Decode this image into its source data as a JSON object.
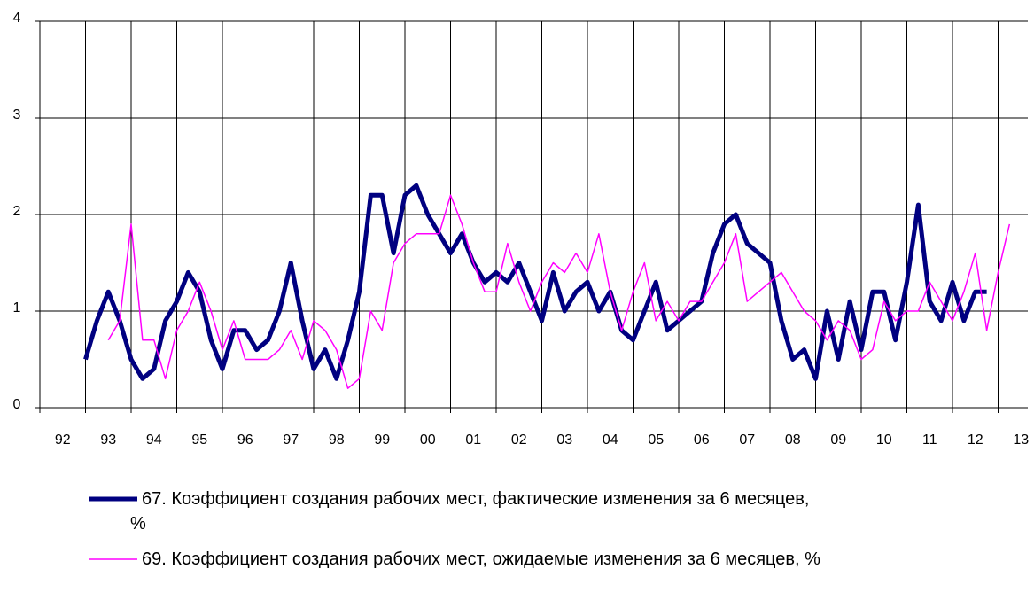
{
  "chart_data": {
    "type": "line",
    "categories": [
      null,
      null,
      "92",
      null,
      null,
      null,
      "93",
      null,
      null,
      null,
      "94",
      null,
      null,
      null,
      "95",
      null,
      null,
      null,
      "96",
      null,
      null,
      null,
      "97",
      null,
      null,
      null,
      "98",
      null,
      null,
      null,
      "99",
      null,
      null,
      null,
      "00",
      null,
      null,
      null,
      "01",
      null,
      null,
      null,
      "02",
      null,
      null,
      null,
      "03",
      null,
      null,
      null,
      "04",
      null,
      null,
      null,
      "05",
      null,
      null,
      null,
      "06",
      null,
      null,
      null,
      "07",
      null,
      null,
      null,
      "08",
      null,
      null,
      null,
      "09",
      null,
      null,
      null,
      "10",
      null,
      null,
      null,
      "11",
      null,
      null,
      null,
      "12",
      null,
      null,
      null,
      "13",
      null
    ],
    "series": [
      {
        "name": "67. Коэффициент создания рабочих мест, фактические изменения за 6 месяцев, %",
        "color": "#000080",
        "values": [
          null,
          null,
          null,
          null,
          0.5,
          0.9,
          1.2,
          0.9,
          0.5,
          0.3,
          0.4,
          0.9,
          1.1,
          1.4,
          1.2,
          0.7,
          0.4,
          0.8,
          0.8,
          0.6,
          0.7,
          1.0,
          1.5,
          0.9,
          0.4,
          0.6,
          0.3,
          0.7,
          1.2,
          2.2,
          2.2,
          1.6,
          2.2,
          2.3,
          2.0,
          1.8,
          1.6,
          1.8,
          1.5,
          1.3,
          1.4,
          1.3,
          1.5,
          1.2,
          0.9,
          1.4,
          1.0,
          1.2,
          1.3,
          1.0,
          1.2,
          0.8,
          0.7,
          1.0,
          1.3,
          0.8,
          0.9,
          1.0,
          1.1,
          1.6,
          1.9,
          2.0,
          1.7,
          1.6,
          1.5,
          0.9,
          0.5,
          0.6,
          0.3,
          1.0,
          0.5,
          1.1,
          0.6,
          1.2,
          1.2,
          0.7,
          1.3,
          2.1,
          1.1,
          0.9,
          1.3,
          0.9,
          1.2,
          1.2,
          null,
          null,
          null,
          null
        ]
      },
      {
        "name": "69. Коэффициент создания рабочих мест, ожидаемые изменения за 6 месяцев, %",
        "color": "#ff00ff",
        "values": [
          null,
          null,
          null,
          null,
          null,
          null,
          0.7,
          0.9,
          1.9,
          0.7,
          0.7,
          0.3,
          0.8,
          1.0,
          1.3,
          1.0,
          0.6,
          0.9,
          0.5,
          0.5,
          0.5,
          0.6,
          0.8,
          0.5,
          0.9,
          0.8,
          0.6,
          0.2,
          0.3,
          1.0,
          0.8,
          1.5,
          1.7,
          1.8,
          1.8,
          1.8,
          2.2,
          1.9,
          1.5,
          1.2,
          1.2,
          1.7,
          1.3,
          1.0,
          1.3,
          1.5,
          1.4,
          1.6,
          1.4,
          1.8,
          1.2,
          0.8,
          1.2,
          1.5,
          0.9,
          1.1,
          0.9,
          1.1,
          1.1,
          1.3,
          1.5,
          1.8,
          1.1,
          1.2,
          1.3,
          1.4,
          1.2,
          1.0,
          0.9,
          0.7,
          0.9,
          0.8,
          0.5,
          0.6,
          1.1,
          0.9,
          1.0,
          1.0,
          1.3,
          1.1,
          0.9,
          1.2,
          1.6,
          0.8,
          1.4,
          1.9,
          null,
          null
        ]
      }
    ],
    "ylim": [
      0,
      4
    ],
    "yticks": [
      0,
      1,
      2,
      3,
      4
    ],
    "grid": true
  }
}
